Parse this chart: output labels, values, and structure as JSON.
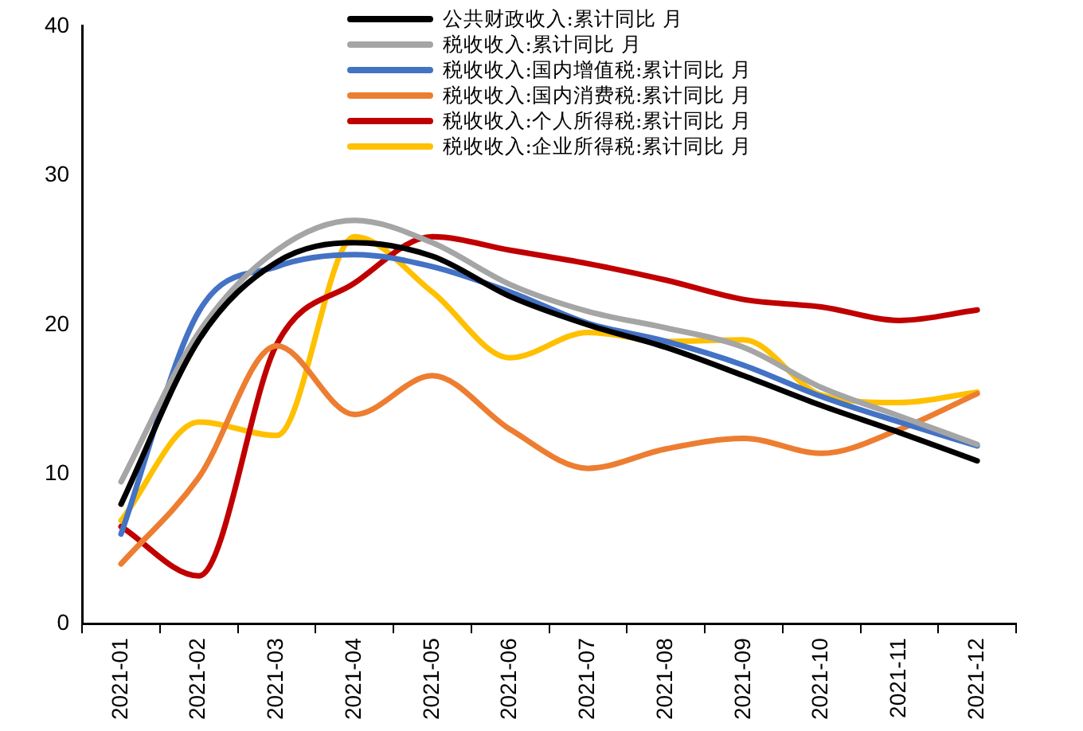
{
  "chart_data": {
    "type": "line",
    "categories": [
      "2021-01",
      "2021-02",
      "2021-03",
      "2021-04",
      "2021-05",
      "2021-06",
      "2021-07",
      "2021-08",
      "2021-09",
      "2021-10",
      "2021-11",
      "2021-12"
    ],
    "ylim": [
      0,
      40
    ],
    "yticks": [
      0,
      10,
      20,
      30,
      40
    ],
    "grid": false,
    "legend": "top",
    "marker": "none",
    "series": [
      {
        "name": "公共财政收入:累计同比 月",
        "color": "#000000",
        "values": [
          8.0,
          19.0,
          24.2,
          25.5,
          24.6,
          21.9,
          20.0,
          18.5,
          16.6,
          14.6,
          12.8,
          10.9
        ]
      },
      {
        "name": "税收收入:累计同比 月",
        "color": "#a5a5a5",
        "values": [
          9.5,
          19.5,
          25.0,
          27.0,
          25.5,
          22.7,
          20.9,
          19.8,
          18.5,
          15.8,
          13.9,
          12.0
        ]
      },
      {
        "name": "税收收入:国内增值税:累计同比 月",
        "color": "#4472c4",
        "values": [
          6.0,
          20.9,
          23.9,
          24.7,
          23.9,
          22.2,
          20.1,
          18.9,
          17.3,
          15.2,
          13.5,
          11.9
        ]
      },
      {
        "name": "税收收入:国内消费税:累计同比 月",
        "color": "#ed7d31",
        "values": [
          4.0,
          9.8,
          18.6,
          14.0,
          16.6,
          13.0,
          10.4,
          11.7,
          12.4,
          11.4,
          13.0,
          15.4
        ]
      },
      {
        "name": "税收收入:个人所得税:累计同比 月",
        "color": "#c00000",
        "values": [
          6.5,
          3.2,
          18.7,
          22.8,
          25.9,
          25.0,
          24.1,
          23.0,
          21.7,
          21.2,
          20.3,
          21.0
        ]
      },
      {
        "name": "税收收入:企业所得税:累计同比 月",
        "color": "#ffc000",
        "values": [
          6.9,
          13.5,
          12.6,
          25.9,
          22.2,
          17.8,
          19.5,
          18.9,
          19.0,
          15.3,
          14.8,
          15.5
        ]
      }
    ]
  }
}
